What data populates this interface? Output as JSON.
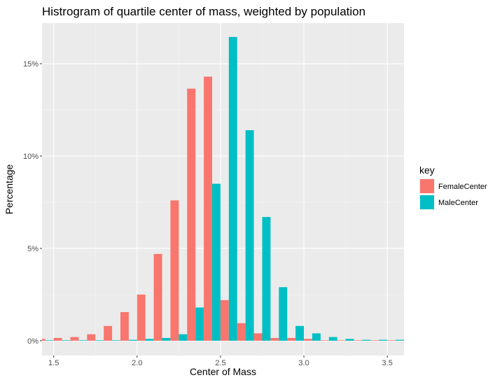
{
  "chart_data": {
    "type": "bar",
    "title": "Histrogram of quartile center of mass, weighted by population",
    "xlabel": "Center of Mass",
    "ylabel": "Percentage",
    "xlim": [
      1.43,
      3.6
    ],
    "ylim": [
      -0.8,
      17.2
    ],
    "x_ticks": [
      1.5,
      2.0,
      2.5,
      3.0,
      3.5
    ],
    "x_tick_labels": [
      "1.5",
      "2.0",
      "2.5",
      "3.0",
      "3.5"
    ],
    "y_ticks": [
      0,
      5,
      10,
      15
    ],
    "y_tick_labels": [
      "0%",
      "5%",
      "10%",
      "15%"
    ],
    "bin_width": 0.1,
    "grid": true,
    "background": "#ebebeb",
    "legend": {
      "title": "key",
      "position": "right"
    },
    "x": [
      1.45,
      1.55,
      1.65,
      1.75,
      1.85,
      1.95,
      2.05,
      2.15,
      2.25,
      2.35,
      2.45,
      2.55,
      2.65,
      2.75,
      2.85,
      2.95,
      3.05,
      3.15,
      3.25,
      3.35,
      3.45,
      3.55
    ],
    "series": [
      {
        "name": "FemaleCenter",
        "color": "#f8766d",
        "values": [
          0.1,
          0.15,
          0.2,
          0.35,
          0.8,
          1.55,
          2.5,
          4.7,
          7.6,
          13.65,
          14.3,
          2.2,
          0.95,
          0.4,
          0.15,
          0.15,
          0.1,
          0.0,
          0.0,
          0.0,
          0.0,
          0.0
        ]
      },
      {
        "name": "MaleCenter",
        "color": "#00bfc4",
        "values": [
          0.0,
          0.0,
          0.0,
          0.0,
          0.0,
          0.05,
          0.1,
          0.15,
          0.35,
          1.8,
          8.5,
          16.45,
          11.4,
          6.7,
          2.9,
          0.8,
          0.4,
          0.2,
          0.1,
          0.05,
          0.05,
          0.05
        ]
      }
    ]
  }
}
